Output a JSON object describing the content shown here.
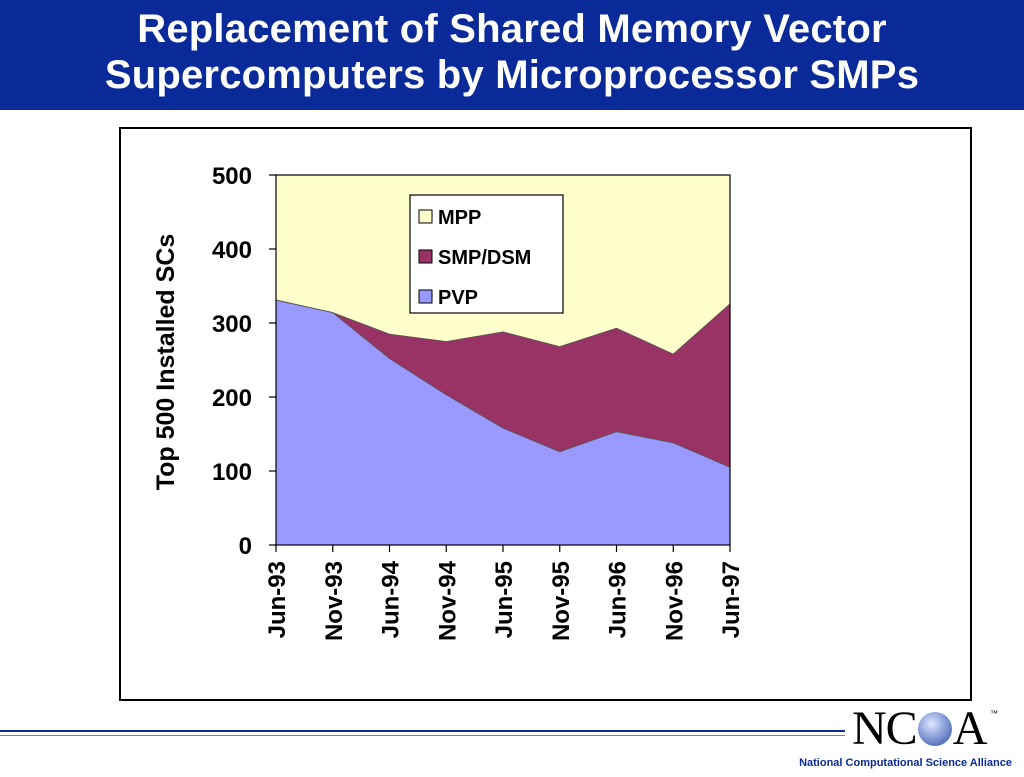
{
  "slide": {
    "title_line1": "Replacement of Shared Memory Vector",
    "title_line2": "Supercomputers by Microprocessor SMPs",
    "logo_text_left": "NC",
    "logo_text_right": "A",
    "logo_tm": "™",
    "footer": "National Computational Science Alliance"
  },
  "colors": {
    "title_bg": "#0b2a9a",
    "mpp": "#ffffcc",
    "smp": "#993366",
    "pvp": "#9999ff"
  },
  "chart_data": {
    "type": "area",
    "stacked": true,
    "categories": [
      "Jun-93",
      "Nov-93",
      "Jun-94",
      "Nov-94",
      "Jun-95",
      "Nov-95",
      "Jun-96",
      "Nov-96",
      "Jun-97"
    ],
    "ylabel": "Top 500 Installed SCs",
    "xlabel": "",
    "ylim": [
      0,
      500
    ],
    "yticks": [
      0,
      100,
      200,
      300,
      400,
      500
    ],
    "grid": false,
    "legend_position": "top-center",
    "series": [
      {
        "name": "PVP",
        "color": "#9999ff",
        "values": [
          331,
          314,
          252,
          203,
          158,
          126,
          153,
          138,
          105
        ]
      },
      {
        "name": "SMP/DSM",
        "color": "#993366",
        "values": [
          0,
          0,
          33,
          72,
          130,
          142,
          140,
          120,
          221
        ]
      },
      {
        "name": "MPP",
        "color": "#ffffcc",
        "values": [
          169,
          186,
          215,
          225,
          212,
          232,
          207,
          242,
          174
        ]
      }
    ],
    "legend_order": [
      "MPP",
      "SMP/DSM",
      "PVP"
    ]
  }
}
